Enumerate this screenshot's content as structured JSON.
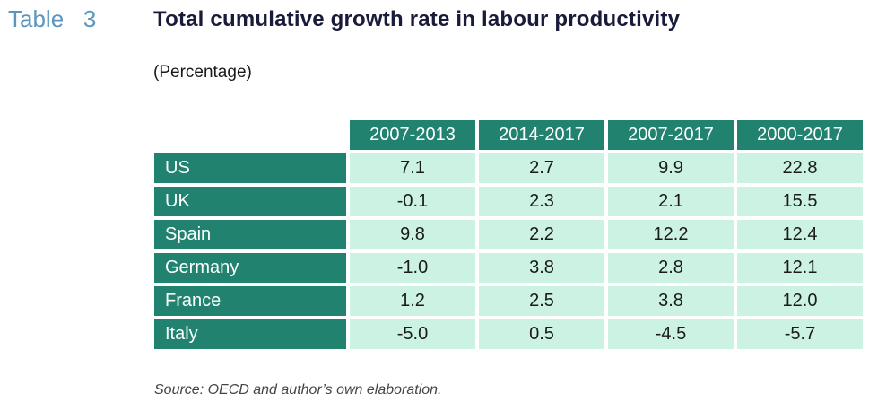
{
  "table_label": "Table   3",
  "title": "Total cumulative growth rate in labour productivity",
  "subtitle": "(Percentage)",
  "columns": [
    "2007-2013",
    "2014-2017",
    "2007-2017",
    "2000-2017"
  ],
  "rows": [
    {
      "country": "US",
      "values": [
        "7.1",
        "2.7",
        "9.9",
        "22.8"
      ]
    },
    {
      "country": "UK",
      "values": [
        "-0.1",
        "2.3",
        "2.1",
        "15.5"
      ]
    },
    {
      "country": "Spain",
      "values": [
        "9.8",
        "2.2",
        "12.2",
        "12.4"
      ]
    },
    {
      "country": "Germany",
      "values": [
        "-1.0",
        "3.8",
        "2.8",
        "12.1"
      ]
    },
    {
      "country": "France",
      "values": [
        "1.2",
        "2.5",
        "3.8",
        "12.0"
      ]
    },
    {
      "country": "Italy",
      "values": [
        "-5.0",
        "0.5",
        "-4.5",
        "-5.7"
      ]
    }
  ],
  "source": "Source: OECD and author’s own elaboration.",
  "colors": {
    "header_bg": "#21826f",
    "cell_bg": "#ccf2e4",
    "label": "#5a97bf"
  }
}
